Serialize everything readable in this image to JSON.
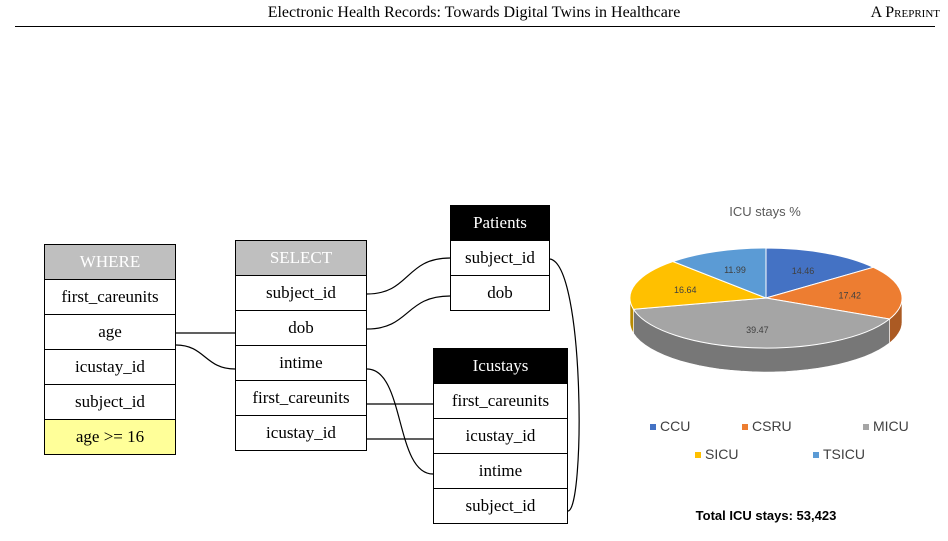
{
  "header": {
    "title": "Electronic Health Records: Towards Digital Twins in Healthcare",
    "preprint": "A Preprint"
  },
  "where_table": {
    "header": "WHERE",
    "rows": [
      "first_careunits",
      "age",
      "icustay_id",
      "subject_id",
      "age >= 16"
    ]
  },
  "select_table": {
    "header": "SELECT",
    "rows": [
      "subject_id",
      "dob",
      "intime",
      "first_careunits",
      "icustay_id"
    ]
  },
  "patients_table": {
    "header": "Patients",
    "rows": [
      "subject_id",
      "dob"
    ]
  },
  "icustays_table": {
    "header": "Icustays",
    "rows": [
      "first_careunits",
      "icustay_id",
      "intime",
      "subject_id"
    ]
  },
  "chart_data": {
    "type": "pie",
    "title": "ICU stays %",
    "categories": [
      "CCU",
      "CSRU",
      "MICU",
      "SICU",
      "TSICU"
    ],
    "values": [
      14.46,
      17.42,
      39.47,
      16.64,
      11.99
    ],
    "data_labels": [
      "14.46",
      "17.42",
      "39.47",
      "16.64",
      "11.99"
    ],
    "colors": [
      "#4472c4",
      "#ed7d31",
      "#a5a5a5",
      "#ffc000",
      "#5b9bd5"
    ],
    "legend_position": "bottom",
    "footer": "Total ICU stays: 53,423"
  }
}
